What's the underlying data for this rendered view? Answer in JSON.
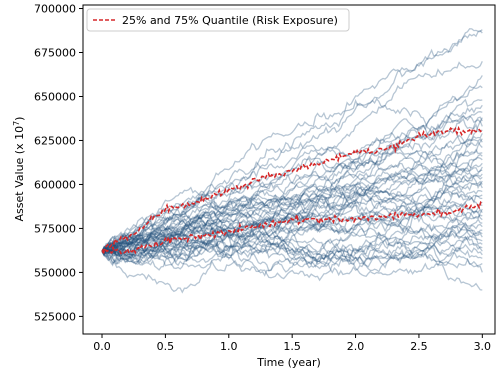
{
  "chart_data": {
    "type": "line",
    "title": "",
    "xlabel": "Time (year)",
    "ylabel": "Asset Value (x 10",
    "ylabel_exponent": "7",
    "ylabel_suffix": ")",
    "xlim": [
      -0.15,
      3.1
    ],
    "ylim": [
      515000,
      702000
    ],
    "x_ticks": [
      0.0,
      0.5,
      1.0,
      1.5,
      2.0,
      2.5,
      3.0
    ],
    "x_tick_labels": [
      "0.0",
      "0.5",
      "1.0",
      "1.5",
      "2.0",
      "2.5",
      "3.0"
    ],
    "y_ticks": [
      525000,
      550000,
      575000,
      600000,
      625000,
      650000,
      675000,
      700000
    ],
    "y_tick_labels": [
      "525000",
      "550000",
      "575000",
      "600000",
      "625000",
      "650000",
      "675000",
      "700000"
    ],
    "grid": false,
    "legend": {
      "placement": "top-left",
      "entries": [
        "25% and 75% Quantile (Risk Exposure)"
      ]
    },
    "colors": {
      "paths": "#1f4e79",
      "quantile": "#d62728"
    },
    "simulated_paths": {
      "count": 50,
      "start_value": 562000,
      "end_values": [
        688000,
        686000,
        670000,
        662000,
        655000,
        648000,
        645000,
        641000,
        638000,
        636000,
        633000,
        631000,
        629000,
        626000,
        624000,
        621000,
        618000,
        616000,
        614000,
        612000,
        610000,
        608000,
        606000,
        604000,
        602000,
        600000,
        598000,
        596000,
        594000,
        592000,
        590000,
        588000,
        586000,
        584000,
        582000,
        580000,
        578000,
        576000,
        574000,
        572000,
        570000,
        568000,
        566000,
        564000,
        562000,
        560000,
        558000,
        555000,
        550000,
        540000
      ]
    },
    "series": [
      {
        "name": "25% and 75% Quantile (Risk Exposure)",
        "x": [
          0.0,
          0.25,
          0.5,
          0.75,
          1.0,
          1.25,
          1.5,
          1.75,
          2.0,
          2.25,
          2.5,
          2.75,
          3.0
        ],
        "values": [
          563000,
          572000,
          586000,
          590000,
          597000,
          603000,
          608000,
          613000,
          618000,
          620000,
          627000,
          631000,
          630000
        ]
      },
      {
        "name": "25% and 75% Quantile (Risk Exposure)",
        "x": [
          0.0,
          0.25,
          0.5,
          0.75,
          1.0,
          1.25,
          1.5,
          1.75,
          2.0,
          2.25,
          2.5,
          2.75,
          3.0
        ],
        "values": [
          562000,
          562000,
          568000,
          570000,
          573000,
          577000,
          580000,
          580000,
          580000,
          582000,
          583000,
          584000,
          589000
        ]
      }
    ]
  }
}
